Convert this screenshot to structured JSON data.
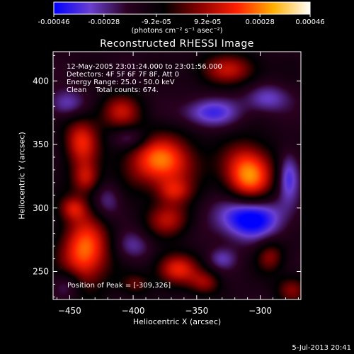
{
  "colorbar": {
    "ticks": [
      "-0.00046",
      "-0.00028",
      "-9.2e-05",
      "9.2e-05",
      "0.00028",
      "0.00046"
    ],
    "unit": "(photons cm⁻² s⁻¹ asec⁻²)",
    "range": [
      -0.00046,
      0.00046
    ],
    "colors": [
      "#0000ff",
      "#6a3fd0",
      "#2a0020",
      "#000000",
      "#8a0000",
      "#ff2000",
      "#ffb000",
      "#ffffff"
    ]
  },
  "image": {
    "info_lines": [
      "12-May-2005 23:01:24.000 to 23:01:56.000",
      "Detectors: 4F 5F 6F 7F 8F, Att 0",
      "Energy Range: 25.0 - 50.0 keV",
      "Clean    Total counts: 674."
    ],
    "peak_label": "Position of Peak = [-309,326]"
  },
  "footer": {
    "date": "5-Jul-2013 20:41"
  },
  "chart_data": {
    "type": "heatmap",
    "title": "Reconstructed RHESSI Image",
    "xlabel": "Heliocentric X (arcsec)",
    "ylabel": "Heliocentric Y (arcsec)",
    "xlim": [
      -463,
      -268
    ],
    "ylim": [
      228,
      423
    ],
    "xticks": [
      -450,
      -400,
      -350,
      -300
    ],
    "yticks": [
      250,
      300,
      350,
      400
    ],
    "peak": [
      -309,
      326
    ],
    "sources": [
      {
        "x": -309,
        "y": 326,
        "amp": 1.0,
        "sx": 14,
        "sy": 17
      },
      {
        "x": -378,
        "y": 337,
        "amp": 0.9,
        "sx": 20,
        "sy": 15
      },
      {
        "x": -438,
        "y": 266,
        "amp": 0.9,
        "sx": 14,
        "sy": 20
      },
      {
        "x": -372,
        "y": 291,
        "amp": 0.55,
        "sx": 13,
        "sy": 10
      },
      {
        "x": -441,
        "y": 352,
        "amp": 0.7,
        "sx": 10,
        "sy": 14
      },
      {
        "x": -437,
        "y": 323,
        "amp": 0.55,
        "sx": 8,
        "sy": 9
      },
      {
        "x": -410,
        "y": 376,
        "amp": 0.55,
        "sx": 12,
        "sy": 10
      },
      {
        "x": -325,
        "y": 409,
        "amp": 0.55,
        "sx": 18,
        "sy": 9
      },
      {
        "x": -366,
        "y": 252,
        "amp": 0.7,
        "sx": 12,
        "sy": 9
      },
      {
        "x": -343,
        "y": 241,
        "amp": 0.45,
        "sx": 9,
        "sy": 7
      },
      {
        "x": -275,
        "y": 236,
        "amp": 0.45,
        "sx": 9,
        "sy": 8
      },
      {
        "x": -292,
        "y": 262,
        "amp": 0.45,
        "sx": 8,
        "sy": 9
      },
      {
        "x": -398,
        "y": 240,
        "amp": 0.35,
        "sx": 8,
        "sy": 6
      },
      {
        "x": -447,
        "y": 300,
        "amp": 0.5,
        "sx": 8,
        "sy": 7
      },
      {
        "x": -368,
        "y": 313,
        "amp": 0.45,
        "sx": 10,
        "sy": 7
      },
      {
        "x": -309,
        "y": 293,
        "amp": -0.85,
        "sx": 18,
        "sy": 12
      },
      {
        "x": -340,
        "y": 375,
        "amp": -0.5,
        "sx": 16,
        "sy": 8
      },
      {
        "x": -278,
        "y": 325,
        "amp": -0.5,
        "sx": 6,
        "sy": 14
      },
      {
        "x": -295,
        "y": 386,
        "amp": -0.4,
        "sx": 12,
        "sy": 8
      },
      {
        "x": -402,
        "y": 355,
        "amp": -0.35,
        "sx": 10,
        "sy": 6
      },
      {
        "x": -452,
        "y": 382,
        "amp": -0.4,
        "sx": 10,
        "sy": 8
      },
      {
        "x": -452,
        "y": 240,
        "amp": -0.35,
        "sx": 8,
        "sy": 8
      },
      {
        "x": -400,
        "y": 270,
        "amp": -0.3,
        "sx": 10,
        "sy": 8
      },
      {
        "x": -420,
        "y": 305,
        "amp": -0.3,
        "sx": 8,
        "sy": 10
      },
      {
        "x": -330,
        "y": 260,
        "amp": -0.3,
        "sx": 8,
        "sy": 6
      }
    ]
  }
}
